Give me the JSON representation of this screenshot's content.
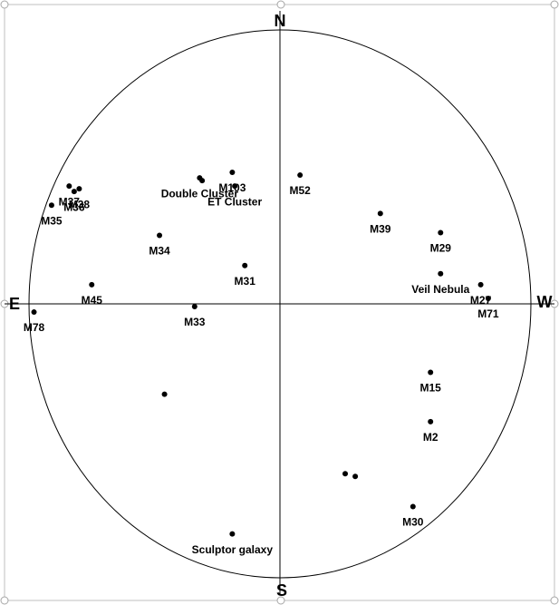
{
  "chart_data": {
    "type": "scatter",
    "directions": {
      "top": "N",
      "bottom": "S",
      "left": "E",
      "right": "W"
    },
    "xlim": [
      -1,
      1
    ],
    "ylim": [
      -1,
      1
    ],
    "color": "#000000",
    "labels": [
      "M52",
      "M103",
      "ET Cluster",
      "Double Cluster",
      null,
      "M37",
      "M36",
      "M38",
      "M35",
      "M34",
      "M31",
      "M45",
      "M33",
      "M78",
      "M39",
      "M29",
      "Veil Nebula",
      "M27",
      "M71",
      "M15",
      "M2",
      "M30",
      null,
      null,
      null,
      "Sculptor galaxy"
    ],
    "x": [
      0.08,
      -0.19,
      -0.18,
      -0.32,
      -0.31,
      -0.84,
      -0.82,
      -0.8,
      -0.91,
      -0.48,
      -0.14,
      -0.75,
      -0.34,
      -0.98,
      0.4,
      0.64,
      0.64,
      0.8,
      0.83,
      0.6,
      0.6,
      0.53,
      -0.46,
      0.26,
      0.3,
      -0.19
    ],
    "values": [
      0.47,
      0.48,
      0.43,
      0.46,
      0.45,
      0.43,
      0.41,
      0.42,
      0.36,
      0.25,
      0.14,
      0.07,
      -0.01,
      -0.03,
      0.33,
      0.26,
      0.11,
      0.07,
      0.02,
      -0.25,
      -0.43,
      -0.74,
      -0.33,
      -0.62,
      -0.63,
      -0.84
    ]
  }
}
